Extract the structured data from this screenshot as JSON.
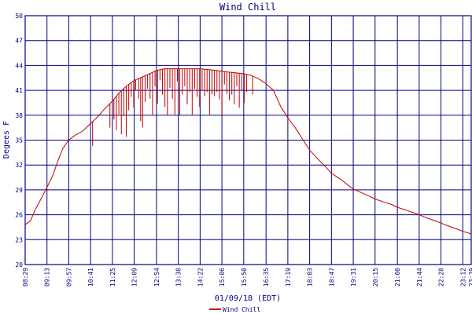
{
  "chart_data": {
    "type": "line",
    "title": "Wind Chill",
    "xlabel": "01/09/18 (EDT)",
    "ylabel": "Degees F",
    "ylim": [
      20,
      50
    ],
    "yticks": [
      20,
      23,
      26,
      29,
      32,
      35,
      38,
      41,
      44,
      47,
      50
    ],
    "xlim": [
      "08:29",
      "23:29"
    ],
    "xticks": [
      "08:29",
      "09:13",
      "09:57",
      "10:41",
      "11:25",
      "12:09",
      "12:54",
      "13:38",
      "14:22",
      "15:06",
      "15:50",
      "16:35",
      "17:19",
      "18:03",
      "18:47",
      "19:31",
      "20:15",
      "21:00",
      "21:44",
      "22:28",
      "23:12",
      "23:29"
    ],
    "grid": true,
    "legend": "bottom-center",
    "colors": {
      "series": "#c00000",
      "axes": "#000080",
      "grid": "#000080"
    },
    "series": [
      {
        "name": "Wind Chill",
        "x": [
          "08:29",
          "08:40",
          "08:50",
          "09:00",
          "09:13",
          "09:25",
          "09:35",
          "09:45",
          "09:57",
          "10:10",
          "10:25",
          "10:41",
          "10:55",
          "11:10",
          "11:25",
          "11:40",
          "11:55",
          "12:09",
          "12:25",
          "12:40",
          "12:54",
          "13:10",
          "13:25",
          "13:38",
          "13:55",
          "14:10",
          "14:22",
          "14:40",
          "14:55",
          "15:06",
          "15:20",
          "15:35",
          "15:50",
          "16:05",
          "16:20",
          "16:35",
          "16:50",
          "17:05",
          "17:19",
          "17:35",
          "17:50",
          "18:03",
          "18:20",
          "18:35",
          "18:47",
          "19:05",
          "19:20",
          "19:31",
          "19:50",
          "20:05",
          "20:15",
          "20:35",
          "20:50",
          "21:00",
          "21:20",
          "21:35",
          "21:44",
          "22:00",
          "22:15",
          "22:28",
          "22:45",
          "23:00",
          "23:12",
          "23:29"
        ],
        "y": [
          24.8,
          25.3,
          26.7,
          27.8,
          29.3,
          30.8,
          32.5,
          34.0,
          35.0,
          35.6,
          36.1,
          37.0,
          37.8,
          38.8,
          39.7,
          40.8,
          41.6,
          42.2,
          42.6,
          43.0,
          43.4,
          43.6,
          43.6,
          43.6,
          43.6,
          43.6,
          43.6,
          43.5,
          43.4,
          43.3,
          43.2,
          43.1,
          43.0,
          42.8,
          42.4,
          41.8,
          41.0,
          39.0,
          37.7,
          36.4,
          35.0,
          33.8,
          32.7,
          31.8,
          31.0,
          30.3,
          29.6,
          29.1,
          28.6,
          28.2,
          27.9,
          27.5,
          27.2,
          26.9,
          26.5,
          26.2,
          26.0,
          25.6,
          25.3,
          25.0,
          24.6,
          24.3,
          24.0,
          23.7
        ]
      }
    ],
    "dips": {
      "x": [
        "10:45",
        "11:20",
        "11:28",
        "11:33",
        "11:38",
        "11:43",
        "11:48",
        "11:53",
        "11:58",
        "12:03",
        "12:08",
        "12:12",
        "12:18",
        "12:22",
        "12:26",
        "12:31",
        "12:36",
        "12:41",
        "12:46",
        "12:51",
        "12:56",
        "13:01",
        "13:06",
        "13:11",
        "13:16",
        "13:21",
        "13:26",
        "13:31",
        "13:36",
        "13:41",
        "13:46",
        "13:51",
        "13:56",
        "14:01",
        "14:06",
        "14:11",
        "14:16",
        "14:21",
        "14:26",
        "14:31",
        "14:36",
        "14:41",
        "14:46",
        "14:51",
        "14:56",
        "15:01",
        "15:06",
        "15:11",
        "15:16",
        "15:21",
        "15:26",
        "15:31",
        "15:36",
        "15:41",
        "15:46",
        "15:51",
        "15:56",
        "16:08"
      ],
      "y": [
        34.3,
        36.5,
        37.5,
        36.2,
        38.1,
        35.7,
        37.9,
        35.4,
        38.6,
        40.2,
        38.9,
        41.0,
        40.0,
        37.3,
        36.5,
        39.6,
        41.2,
        40.0,
        38.0,
        41.5,
        39.4,
        42.2,
        40.5,
        39.0,
        38.0,
        41.3,
        40.0,
        38.1,
        42.1,
        38.0,
        40.5,
        41.5,
        39.3,
        40.8,
        38.0,
        41.2,
        40.2,
        39.0,
        41.0,
        40.3,
        40.8,
        38.1,
        40.5,
        40.3,
        40.8,
        39.9,
        38.0,
        41.7,
        40.6,
        39.8,
        40.5,
        39.3,
        41.5,
        38.9,
        41.0,
        39.5,
        40.8,
        40.5
      ]
    }
  }
}
